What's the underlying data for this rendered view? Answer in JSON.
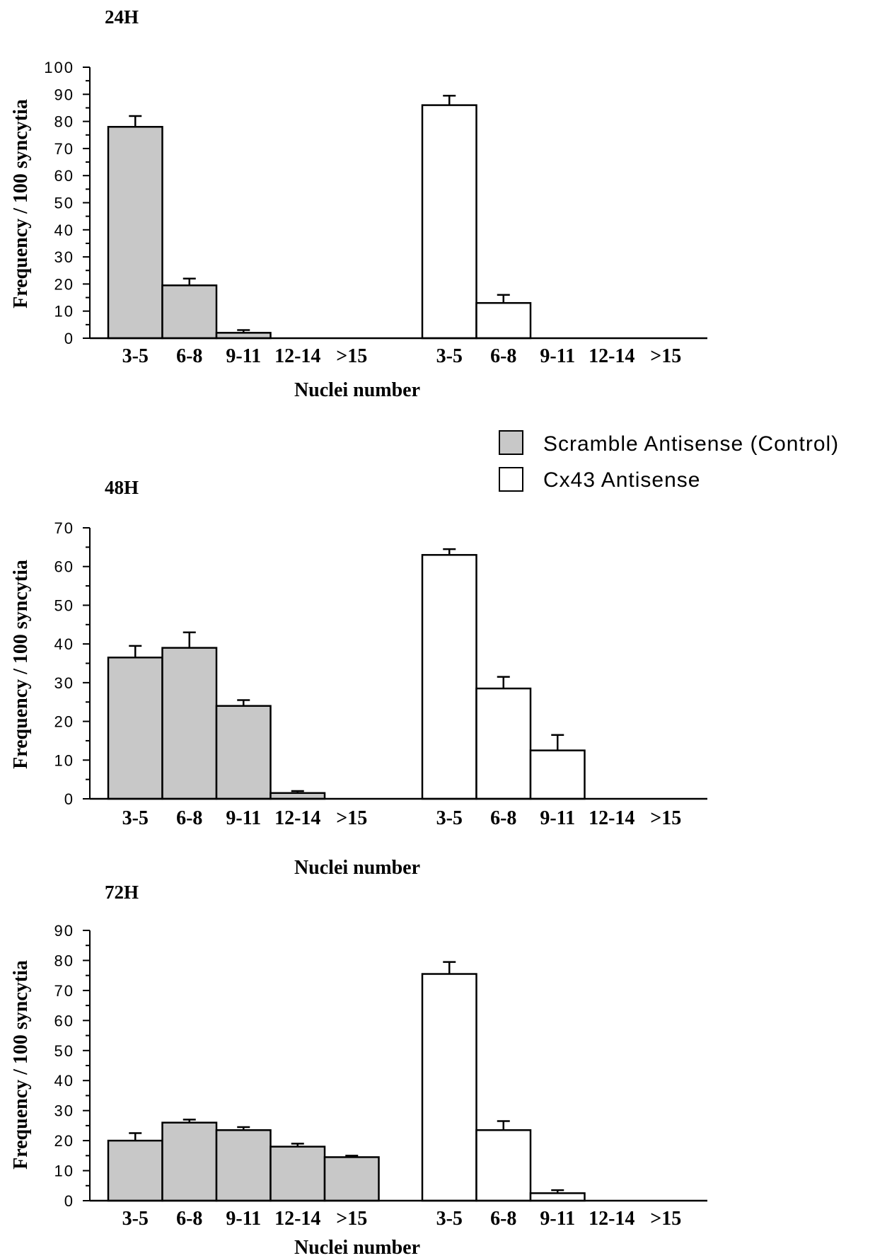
{
  "legend": [
    {
      "label": "Scramble Antisense (Control)",
      "color": "#c8c8c8"
    },
    {
      "label": "Cx43 Antisense",
      "color": "#ffffff"
    }
  ],
  "chart_data": [
    {
      "type": "bar",
      "title": "24H",
      "xlabel": "Nuclei number",
      "ylabel": "Frequency / 100 syncytia",
      "ylim": [
        0,
        100
      ],
      "yticks": [
        0,
        10,
        20,
        30,
        40,
        50,
        60,
        70,
        80,
        90,
        100
      ],
      "categories": [
        "3-5",
        "6-8",
        "9-11",
        "12-14",
        ">15"
      ],
      "series": [
        {
          "name": "Scramble Antisense (Control)",
          "values": [
            78,
            19.5,
            2,
            0,
            0
          ],
          "errors": [
            4,
            2.5,
            1,
            0,
            0
          ],
          "color": "#c8c8c8"
        },
        {
          "name": "Cx43 Antisense",
          "values": [
            86,
            13,
            0,
            0,
            0
          ],
          "errors": [
            3.5,
            3,
            0,
            0,
            0
          ],
          "color": "#ffffff"
        }
      ]
    },
    {
      "type": "bar",
      "title": "48H",
      "xlabel": "Nuclei number",
      "ylabel": "Frequency / 100 syncytia",
      "ylim": [
        0,
        70
      ],
      "yticks": [
        0,
        10,
        20,
        30,
        40,
        50,
        60,
        70
      ],
      "categories": [
        "3-5",
        "6-8",
        "9-11",
        "12-14",
        ">15"
      ],
      "series": [
        {
          "name": "Scramble Antisense (Control)",
          "values": [
            36.5,
            39,
            24,
            1.5,
            0
          ],
          "errors": [
            3,
            4,
            1.5,
            0.5,
            0
          ],
          "color": "#c8c8c8"
        },
        {
          "name": "Cx43 Antisense",
          "values": [
            63,
            28.5,
            12.5,
            0,
            0
          ],
          "errors": [
            1.5,
            3,
            4,
            0,
            0
          ],
          "color": "#ffffff"
        }
      ]
    },
    {
      "type": "bar",
      "title": "72H",
      "xlabel": "Nuclei number",
      "ylabel": "Frequency / 100 syncytia",
      "ylim": [
        0,
        90
      ],
      "yticks": [
        0,
        10,
        20,
        30,
        40,
        50,
        60,
        70,
        80,
        90
      ],
      "categories": [
        "3-5",
        "6-8",
        "9-11",
        "12-14",
        ">15"
      ],
      "series": [
        {
          "name": "Scramble Antisense (Control)",
          "values": [
            20,
            26,
            23.5,
            18,
            14.5
          ],
          "errors": [
            2.5,
            1,
            1,
            1,
            0.5
          ],
          "color": "#c8c8c8"
        },
        {
          "name": "Cx43 Antisense",
          "values": [
            75.5,
            23.5,
            2.5,
            0,
            0
          ],
          "errors": [
            4,
            3,
            1,
            0,
            0
          ],
          "color": "#ffffff"
        }
      ]
    }
  ]
}
